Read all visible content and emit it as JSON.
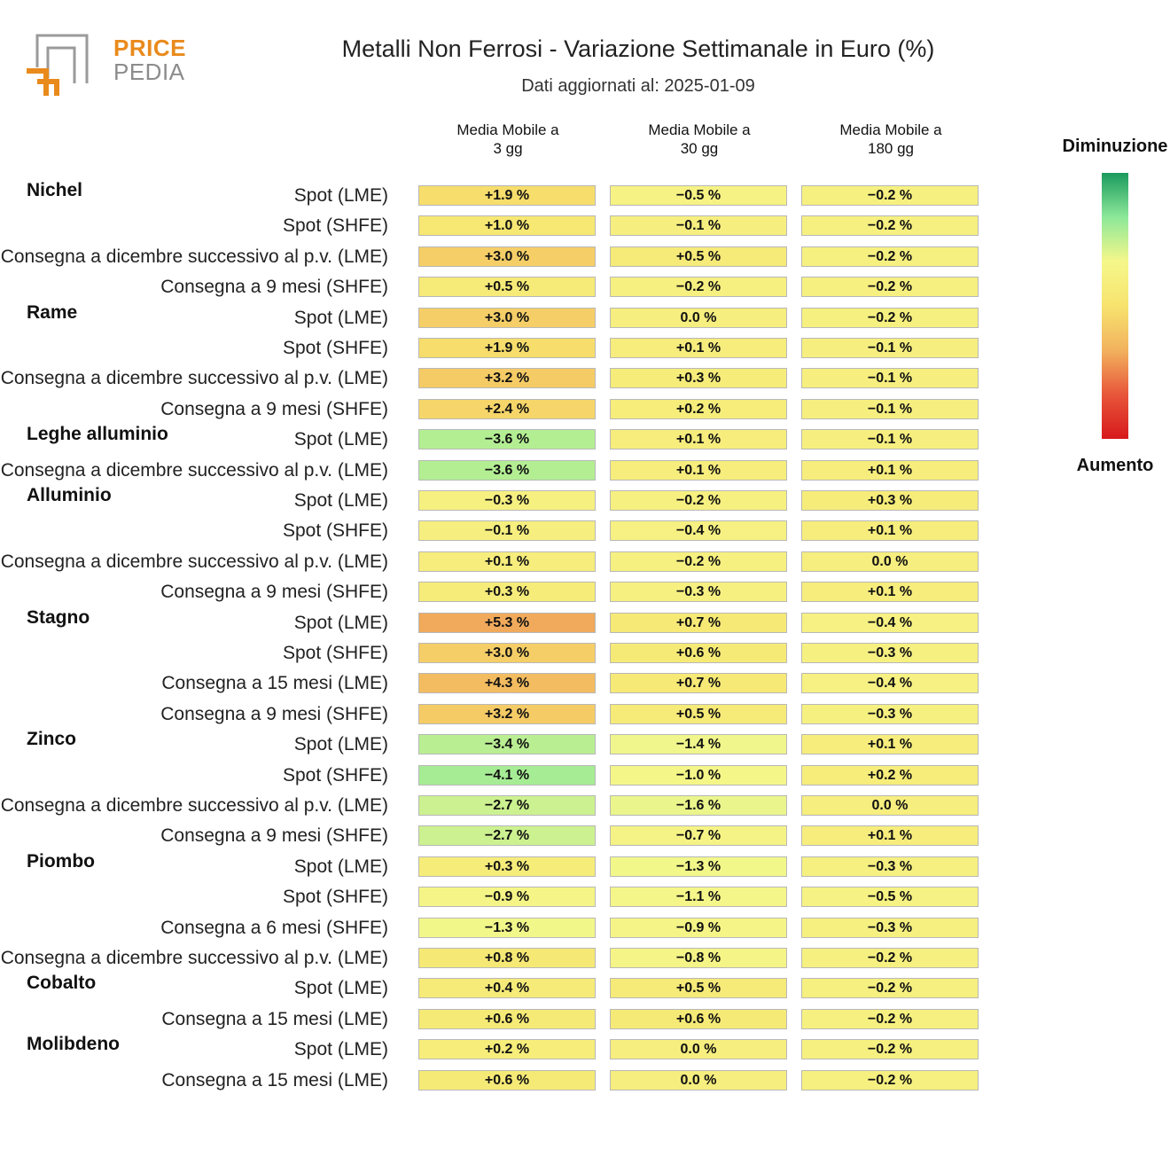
{
  "logo": {
    "line1": "PRICE",
    "line2": "PEDIA"
  },
  "chart_data": {
    "type": "heatmap",
    "title": "Metalli Non Ferrosi - Variazione Settimanale in Euro (%)",
    "subtitle": "Dati aggiornati al: 2025-01-09",
    "columns": [
      {
        "line1": "Media Mobile a",
        "line2": "3 gg"
      },
      {
        "line1": "Media Mobile a",
        "line2": "30 gg"
      },
      {
        "line1": "Media Mobile a",
        "line2": "180 gg"
      }
    ],
    "legend": {
      "top": "Diminuzione",
      "bottom": "Aumento"
    },
    "unit": "%",
    "color_scale": [
      "#1a9a5e",
      "#8de899",
      "#f5f78a",
      "#f7e36e",
      "#f2b25e",
      "#e8563a",
      "#d7191c"
    ],
    "groups": [
      {
        "name": "Nichel",
        "rows": [
          {
            "label": "Spot (LME)",
            "values": [
              1.9,
              -0.5,
              -0.2
            ]
          },
          {
            "label": "Spot (SHFE)",
            "values": [
              1.0,
              -0.1,
              -0.2
            ]
          },
          {
            "label": "Consegna a dicembre successivo al p.v. (LME)",
            "values": [
              3.0,
              0.5,
              -0.2
            ]
          },
          {
            "label": "Consegna a 9 mesi (SHFE)",
            "values": [
              0.5,
              -0.2,
              -0.2
            ]
          }
        ]
      },
      {
        "name": "Rame",
        "rows": [
          {
            "label": "Spot (LME)",
            "values": [
              3.0,
              0.0,
              -0.2
            ]
          },
          {
            "label": "Spot (SHFE)",
            "values": [
              1.9,
              0.1,
              -0.1
            ]
          },
          {
            "label": "Consegna a dicembre successivo al p.v. (LME)",
            "values": [
              3.2,
              0.3,
              -0.1
            ]
          },
          {
            "label": "Consegna a 9 mesi (SHFE)",
            "values": [
              2.4,
              0.2,
              -0.1
            ]
          }
        ]
      },
      {
        "name": "Leghe alluminio",
        "rows": [
          {
            "label": "Spot (LME)",
            "values": [
              -3.6,
              0.1,
              -0.1
            ]
          },
          {
            "label": "Consegna a dicembre successivo al p.v. (LME)",
            "values": [
              -3.6,
              0.1,
              0.1
            ]
          }
        ]
      },
      {
        "name": "Alluminio",
        "rows": [
          {
            "label": "Spot (LME)",
            "values": [
              -0.3,
              -0.2,
              0.3
            ]
          },
          {
            "label": "Spot (SHFE)",
            "values": [
              -0.1,
              -0.4,
              0.1
            ]
          },
          {
            "label": "Consegna a dicembre successivo al p.v. (LME)",
            "values": [
              0.1,
              -0.2,
              0.0
            ]
          },
          {
            "label": "Consegna a 9 mesi (SHFE)",
            "values": [
              0.3,
              -0.3,
              0.1
            ]
          }
        ]
      },
      {
        "name": "Stagno",
        "rows": [
          {
            "label": "Spot (LME)",
            "values": [
              5.3,
              0.7,
              -0.4
            ]
          },
          {
            "label": "Spot (SHFE)",
            "values": [
              3.0,
              0.6,
              -0.3
            ]
          },
          {
            "label": "Consegna a 15 mesi (LME)",
            "values": [
              4.3,
              0.7,
              -0.4
            ]
          },
          {
            "label": "Consegna a 9 mesi (SHFE)",
            "values": [
              3.2,
              0.5,
              -0.3
            ]
          }
        ]
      },
      {
        "name": "Zinco",
        "rows": [
          {
            "label": "Spot (LME)",
            "values": [
              -3.4,
              -1.4,
              0.1
            ]
          },
          {
            "label": "Spot (SHFE)",
            "values": [
              -4.1,
              -1.0,
              0.2
            ]
          },
          {
            "label": "Consegna a dicembre successivo al p.v. (LME)",
            "values": [
              -2.7,
              -1.6,
              0.0
            ]
          },
          {
            "label": "Consegna a 9 mesi (SHFE)",
            "values": [
              -2.7,
              -0.7,
              0.1
            ]
          }
        ]
      },
      {
        "name": "Piombo",
        "rows": [
          {
            "label": "Spot (LME)",
            "values": [
              0.3,
              -1.3,
              -0.3
            ]
          },
          {
            "label": "Spot (SHFE)",
            "values": [
              -0.9,
              -1.1,
              -0.5
            ]
          },
          {
            "label": "Consegna a 6 mesi (SHFE)",
            "values": [
              -1.3,
              -0.9,
              -0.3
            ]
          },
          {
            "label": "Consegna a dicembre successivo al p.v. (LME)",
            "values": [
              0.8,
              -0.8,
              -0.2
            ]
          }
        ]
      },
      {
        "name": "Cobalto",
        "rows": [
          {
            "label": "Spot (LME)",
            "values": [
              0.4,
              0.5,
              -0.2
            ]
          },
          {
            "label": "Consegna a 15 mesi (LME)",
            "values": [
              0.6,
              0.6,
              -0.2
            ]
          }
        ]
      },
      {
        "name": "Molibdeno",
        "rows": [
          {
            "label": "Spot (LME)",
            "values": [
              0.2,
              0.0,
              -0.2
            ]
          },
          {
            "label": "Consegna a 15 mesi (LME)",
            "values": [
              0.6,
              0.0,
              -0.2
            ]
          }
        ]
      }
    ]
  }
}
